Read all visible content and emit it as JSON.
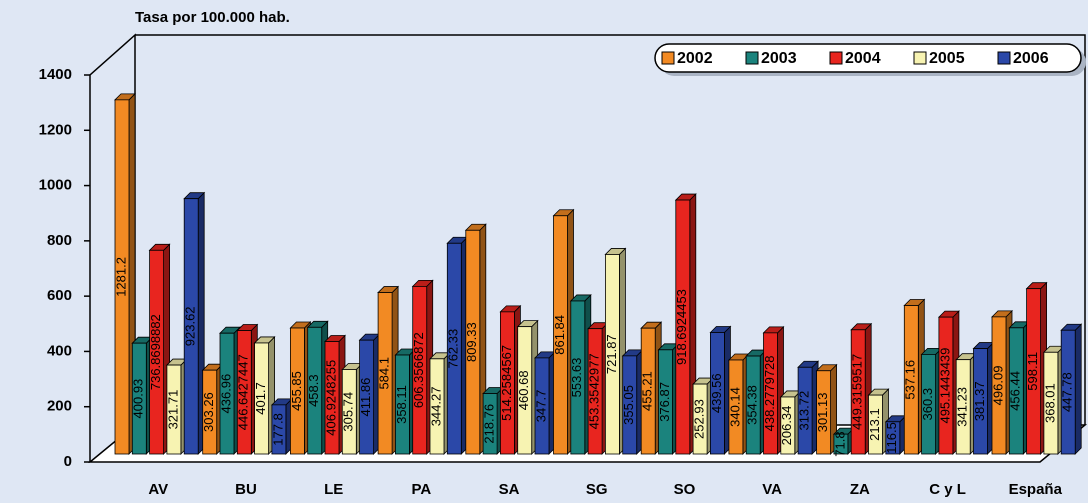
{
  "chart_data": {
    "type": "bar3d",
    "title": "Tasa por 100.000 hab.",
    "categories": [
      "AV",
      "BU",
      "LE",
      "PA",
      "SA",
      "SG",
      "SO",
      "VA",
      "ZA",
      "C y L",
      "España"
    ],
    "series": [
      {
        "name": "2002",
        "color": "#f28a23",
        "values": [
          1281.2,
          303.26,
          455.85,
          584.1,
          809.33,
          861.84,
          455.21,
          340.14,
          301.13,
          537.16,
          496.09
        ]
      },
      {
        "name": "2003",
        "color": "#1b837d",
        "values": [
          400.93,
          436.96,
          458.3,
          358.11,
          218.76,
          553.63,
          376.87,
          354.38,
          71.8,
          360.3,
          456.44
        ]
      },
      {
        "name": "2004",
        "color": "#e8251f",
        "values": [
          736.8698882,
          446.6427447,
          406.9248255,
          606.3566872,
          514.2584567,
          453.3542977,
          918.6924453,
          438.2779728,
          449.3159517,
          495.1443439,
          598.11
        ]
      },
      {
        "name": "2005",
        "color": "#f7f3b2",
        "values": [
          321.71,
          401.7,
          305.74,
          344.27,
          460.68,
          721.87,
          252.93,
          206.34,
          213.1,
          341.23,
          368.01
        ]
      },
      {
        "name": "2006",
        "color": "#2b48a8",
        "values": [
          923.62,
          177.8,
          411.86,
          762.33,
          347.7,
          355.05,
          439.56,
          313.72,
          116.5,
          381.37,
          447.78
        ]
      }
    ],
    "ylim": [
      0,
      1400
    ],
    "yticks": [
      0,
      200,
      400,
      600,
      800,
      1000,
      1200,
      1400
    ]
  }
}
